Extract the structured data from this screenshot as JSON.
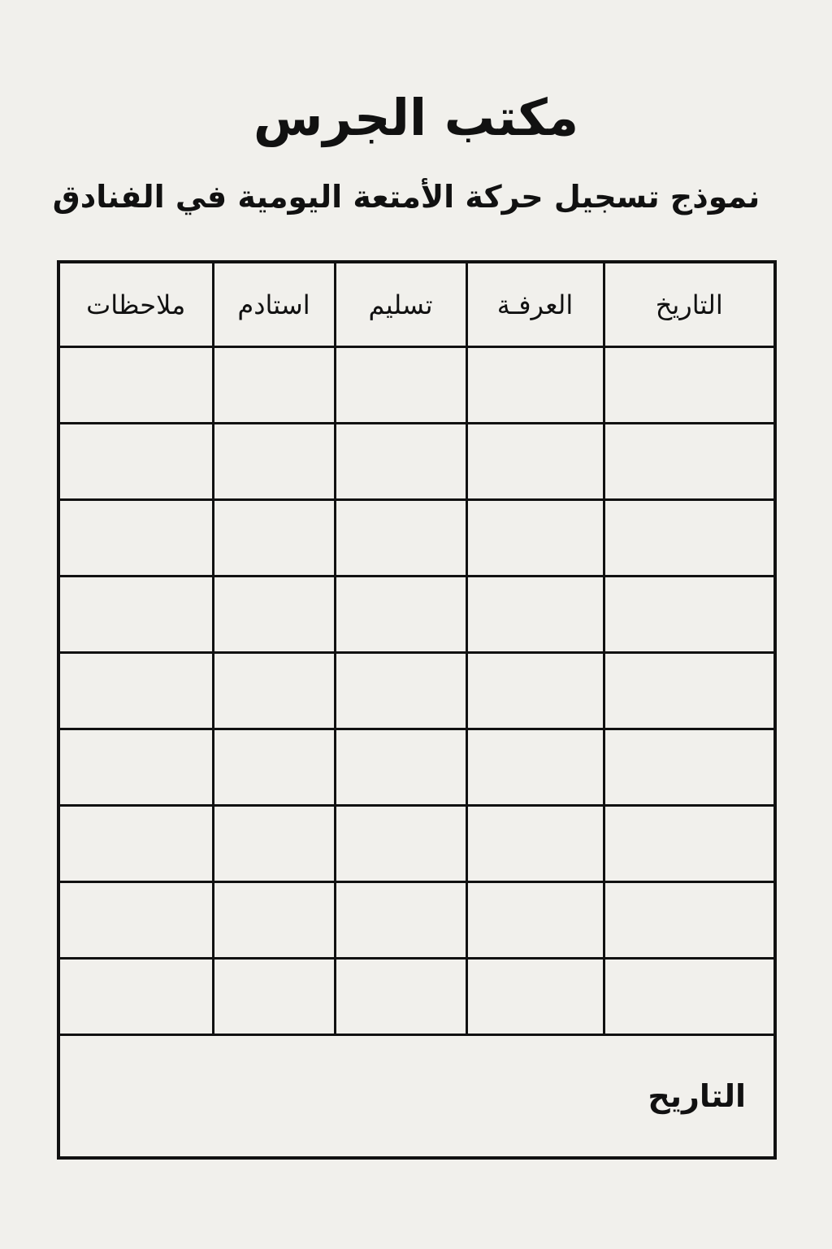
{
  "header": {
    "title": "مكتب الجرس",
    "subtitle": "نموذج تسجيل حركة الأمتعة اليومية في الفنادق"
  },
  "table": {
    "columns": [
      "التاريخ",
      "العرفـة",
      "تسليم",
      "استادم",
      "ملاحظات"
    ],
    "row_count": 9,
    "footer_label": "التاريح"
  }
}
